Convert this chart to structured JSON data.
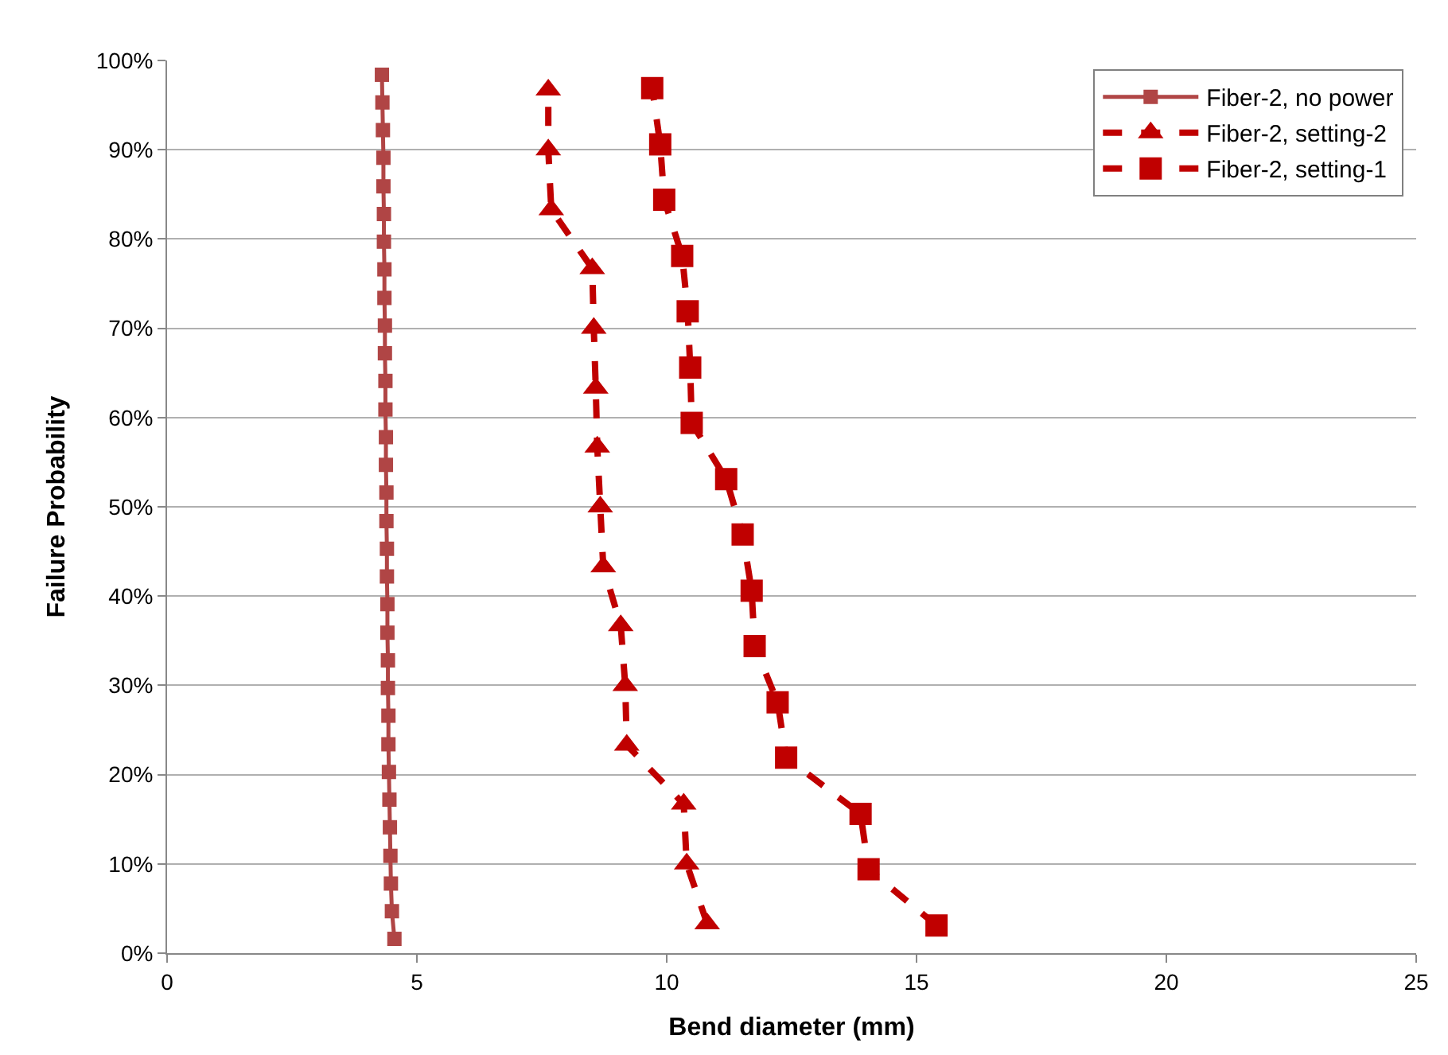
{
  "chart_data": {
    "type": "line",
    "xlabel": "Bend diameter (mm)",
    "ylabel": "Failure Probability",
    "xlim": [
      0,
      25
    ],
    "xticks": [
      0,
      5,
      10,
      15,
      20,
      25
    ],
    "ylim": [
      0,
      100
    ],
    "yticks": [
      {
        "value": 0,
        "label": "0%"
      },
      {
        "value": 10,
        "label": "10%"
      },
      {
        "value": 20,
        "label": "20%"
      },
      {
        "value": 30,
        "label": "30%"
      },
      {
        "value": 40,
        "label": "40%"
      },
      {
        "value": 50,
        "label": "50%"
      },
      {
        "value": 60,
        "label": "60%"
      },
      {
        "value": 70,
        "label": "70%"
      },
      {
        "value": 80,
        "label": "80%"
      },
      {
        "value": 90,
        "label": "90%"
      },
      {
        "value": 100,
        "label": "100%"
      }
    ],
    "grid": "y",
    "legend": "top right",
    "series": [
      {
        "name": "Fiber-2, no power",
        "color": "#b04545",
        "marker": "square",
        "line_style": "solid",
        "x": [
          4.55,
          4.5,
          4.48,
          4.47,
          4.46,
          4.45,
          4.44,
          4.43,
          4.43,
          4.42,
          4.42,
          4.41,
          4.41,
          4.4,
          4.4,
          4.39,
          4.39,
          4.38,
          4.38,
          4.37,
          4.37,
          4.36,
          4.36,
          4.35,
          4.35,
          4.34,
          4.34,
          4.33,
          4.33,
          4.32,
          4.31,
          4.3
        ],
        "values": [
          1.6,
          4.7,
          7.8,
          10.9,
          14.1,
          17.2,
          20.3,
          23.4,
          26.6,
          29.7,
          32.8,
          35.9,
          39.1,
          42.2,
          45.3,
          48.4,
          51.6,
          54.7,
          57.8,
          60.9,
          64.1,
          67.2,
          70.3,
          73.4,
          76.6,
          79.7,
          82.8,
          85.9,
          89.1,
          92.2,
          95.3,
          98.4
        ]
      },
      {
        "name": "Fiber-2, setting-2",
        "color": "#c00000",
        "marker": "triangle",
        "line_style": "dashed",
        "x": [
          10.81,
          10.4,
          10.34,
          9.2,
          9.17,
          9.08,
          8.73,
          8.67,
          8.61,
          8.58,
          8.54,
          8.51,
          7.69,
          7.63,
          7.63
        ],
        "values": [
          3.3,
          10.0,
          16.7,
          23.3,
          30.0,
          36.7,
          43.3,
          50.0,
          56.7,
          63.3,
          70.0,
          76.7,
          83.3,
          90.0,
          96.7
        ]
      },
      {
        "name": "Fiber-2, setting-1",
        "color": "#c00000",
        "marker": "square",
        "line_style": "dashed",
        "x": [
          15.4,
          14.04,
          13.88,
          12.39,
          12.22,
          11.76,
          11.7,
          11.52,
          11.19,
          10.5,
          10.47,
          10.42,
          10.31,
          9.95,
          9.87,
          9.71
        ],
        "values": [
          3.1,
          9.4,
          15.6,
          21.9,
          28.1,
          34.4,
          40.6,
          46.9,
          53.1,
          59.4,
          65.6,
          71.9,
          78.1,
          84.4,
          90.6,
          96.9
        ]
      }
    ]
  }
}
